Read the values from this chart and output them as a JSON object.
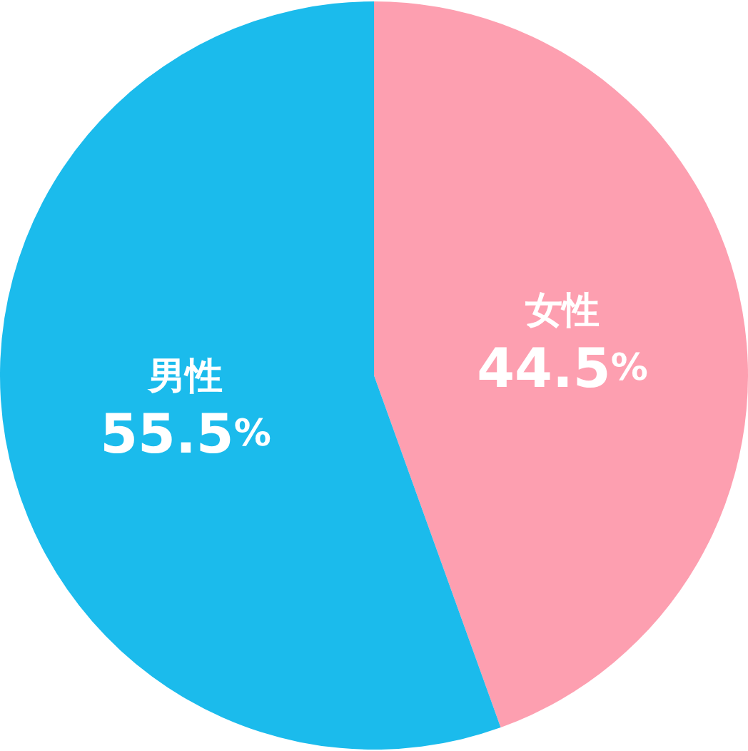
{
  "chart_data": {
    "type": "pie",
    "categories": [
      "女性",
      "男性"
    ],
    "values": [
      44.5,
      55.5
    ],
    "colors": [
      "#fd9fb0",
      "#1bbbec"
    ],
    "value_labels": [
      "44.5%",
      "55.5%"
    ],
    "legend": false
  }
}
